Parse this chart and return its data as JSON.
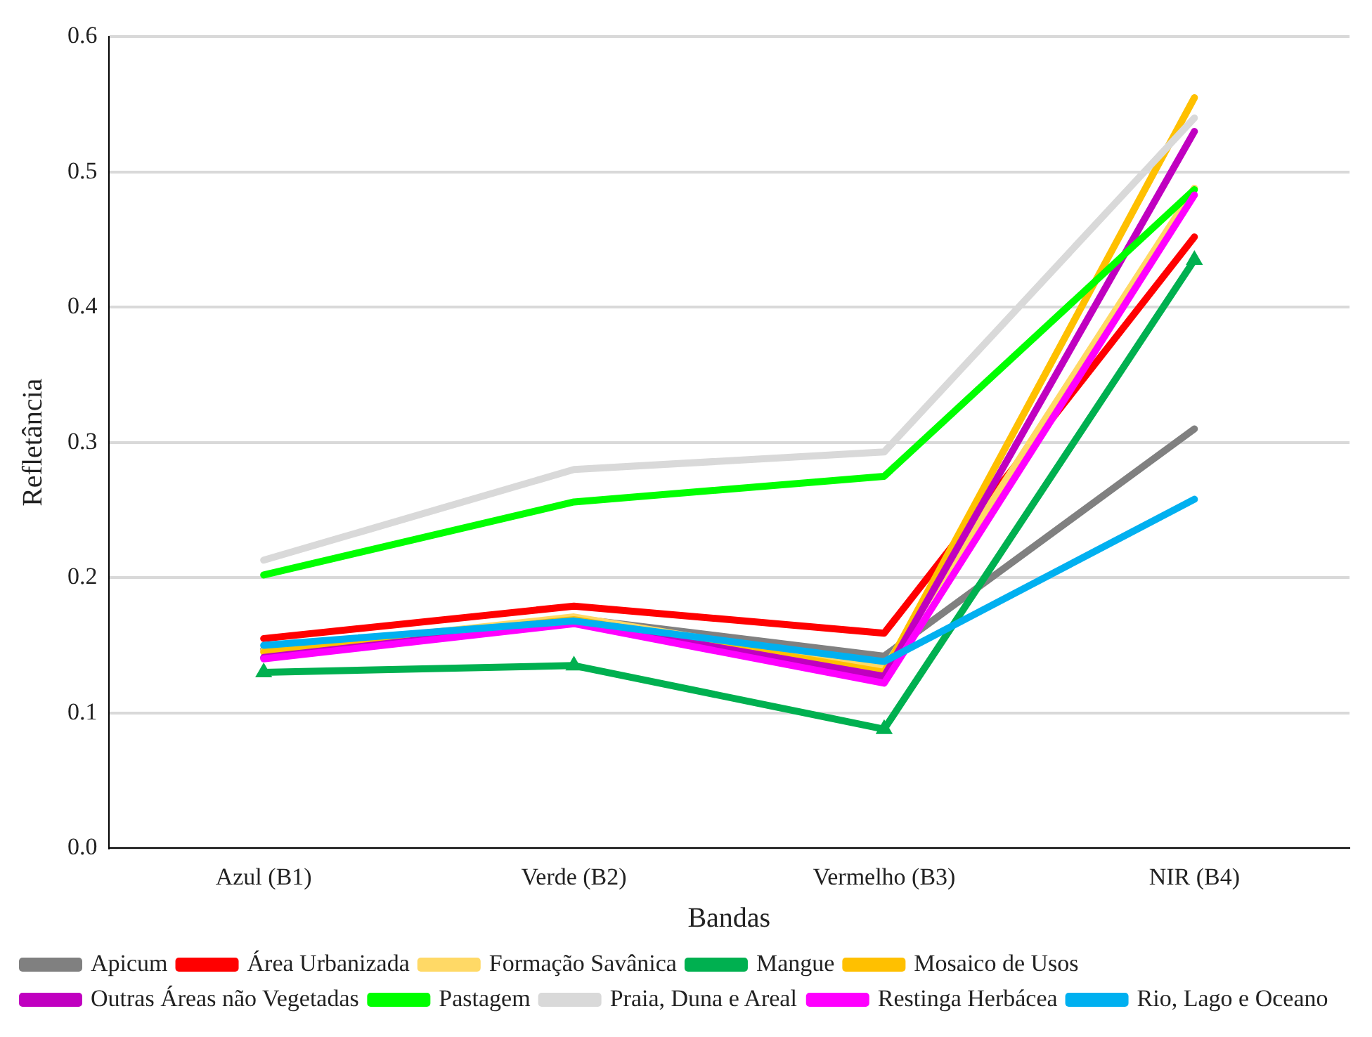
{
  "chart_data": {
    "type": "line",
    "xlabel": "Bandas",
    "ylabel": "Refletância",
    "categories": [
      "Azul (B1)",
      "Verde (B2)",
      "Vermelho (B3)",
      "NIR (B4)"
    ],
    "ylim": [
      0,
      0.6
    ],
    "yticks": [
      {
        "value": 0,
        "label": "0.0"
      },
      0.1,
      0.2,
      0.3,
      0.4,
      0.5,
      0.6
    ],
    "grid": "y",
    "legend": "bottom",
    "marker": "none",
    "line_style": "solid",
    "series": [
      {
        "name": "Apicum",
        "color": "#808080",
        "values": [
          0.147,
          0.17,
          0.142,
          0.31
        ]
      },
      {
        "name": "Área Urbanizada",
        "color": "#ff0000",
        "values": [
          0.155,
          0.179,
          0.159,
          0.452
        ]
      },
      {
        "name": "Formação Savânica",
        "color": "#ffd966",
        "values": [
          0.146,
          0.171,
          0.133,
          0.488
        ]
      },
      {
        "name": "Mangue",
        "color": "#00b050",
        "marker": "triangle",
        "values": [
          0.13,
          0.135,
          0.088,
          0.435
        ]
      },
      {
        "name": "Mosaico de Usos",
        "color": "#ffc000",
        "values": [
          0.145,
          0.169,
          0.13,
          0.555
        ]
      },
      {
        "name": "Outras Áreas não Vegetadas",
        "color": "#c000c0",
        "values": [
          0.141,
          0.167,
          0.127,
          0.53
        ]
      },
      {
        "name": "Pastagem",
        "color": "#00ff00",
        "values": [
          0.202,
          0.256,
          0.275,
          0.487
        ]
      },
      {
        "name": "Praia, Duna e Areal",
        "color": "#d9d9d9",
        "values": [
          0.213,
          0.28,
          0.293,
          0.54
        ]
      },
      {
        "name": "Restinga Herbácea",
        "color": "#ff00ff",
        "values": [
          0.14,
          0.166,
          0.122,
          0.483
        ]
      },
      {
        "name": "Rio, Lago e Oceano",
        "color": "#00b0f0",
        "values": [
          0.15,
          0.168,
          0.138,
          0.258
        ]
      }
    ]
  }
}
